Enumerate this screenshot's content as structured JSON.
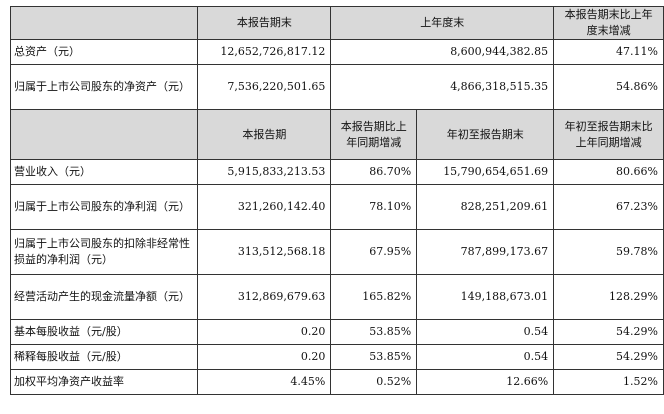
{
  "header1": {
    "col1": "本报告期末",
    "col2": "上年度末",
    "col3": "本报告期末比上年度末增减"
  },
  "rows1": [
    {
      "label": "总资产（元）",
      "current": "12,652,726,817.12",
      "prior": "8,600,944,382.85",
      "change": "47.11%"
    },
    {
      "label": "归属于上市公司股东的净资产（元）",
      "current": "7,536,220,501.65",
      "prior": "4,866,318,515.35",
      "change": "54.86%"
    }
  ],
  "header2": {
    "col1": "本报告期",
    "col2": "本报告期比上年同期增减",
    "col3": "年初至报告期末",
    "col4": "年初至报告期末比上年同期增减"
  },
  "rows2": [
    {
      "label": "营业收入（元）",
      "period": "5,915,833,213.53",
      "period_change": "86.70%",
      "ytd": "15,790,654,651.69",
      "ytd_change": "80.66%"
    },
    {
      "label": "归属于上市公司股东的净利润（元）",
      "period": "321,260,142.40",
      "period_change": "78.10%",
      "ytd": "828,251,209.61",
      "ytd_change": "67.23%"
    },
    {
      "label": "归属于上市公司股东的扣除非经常性损益的净利润（元）",
      "period": "313,512,568.18",
      "period_change": "67.95%",
      "ytd": "787,899,173.67",
      "ytd_change": "59.78%"
    },
    {
      "label": "经营活动产生的现金流量净额（元）",
      "period": "312,869,679.63",
      "period_change": "165.82%",
      "ytd": "149,188,673.01",
      "ytd_change": "128.29%"
    },
    {
      "label": "基本每股收益（元/股）",
      "period": "0.20",
      "period_change": "53.85%",
      "ytd": "0.54",
      "ytd_change": "54.29%"
    },
    {
      "label": "稀释每股收益（元/股）",
      "period": "0.20",
      "period_change": "53.85%",
      "ytd": "0.54",
      "ytd_change": "54.29%"
    },
    {
      "label": "加权平均净资产收益率",
      "period": "4.45%",
      "period_change": "0.52%",
      "ytd": "12.66%",
      "ytd_change": "1.52%"
    }
  ]
}
